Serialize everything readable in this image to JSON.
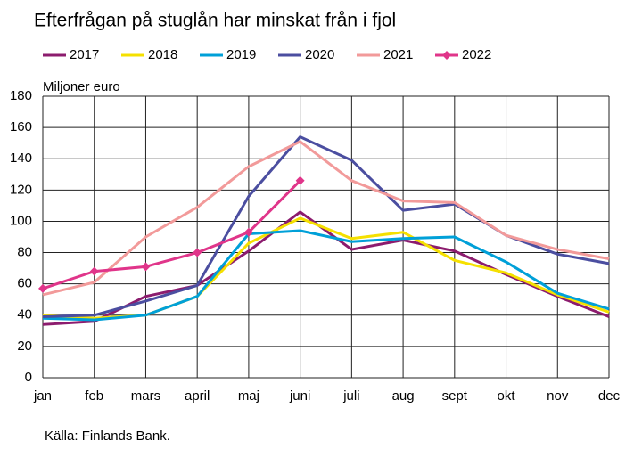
{
  "chart_data": {
    "type": "line",
    "title": "Efterfrågan på stuglån har minskat från i fjol",
    "y_axis_label": "Miljoner euro",
    "source": "Källa: Finlands Bank.",
    "categories": [
      "jan",
      "feb",
      "mars",
      "april",
      "maj",
      "juni",
      "juli",
      "aug",
      "sept",
      "okt",
      "nov",
      "dec"
    ],
    "series": [
      {
        "name": "2017",
        "color": "#8c1c6e",
        "values": [
          34,
          36,
          52,
          59,
          81,
          106,
          82,
          88,
          81,
          66,
          52,
          39
        ]
      },
      {
        "name": "2018",
        "color": "#f5e000",
        "values": [
          40,
          38,
          40,
          52,
          86,
          102,
          89,
          93,
          75,
          67,
          53,
          42
        ]
      },
      {
        "name": "2019",
        "color": "#00a0d8",
        "values": [
          38,
          37,
          40,
          52,
          92,
          94,
          87,
          89,
          90,
          74,
          54,
          44
        ]
      },
      {
        "name": "2020",
        "color": "#4b4ea0",
        "values": [
          39,
          40,
          49,
          59,
          116,
          154,
          139,
          107,
          111,
          91,
          79,
          73
        ]
      },
      {
        "name": "2021",
        "color": "#f29a9a",
        "values": [
          53,
          61,
          90,
          109,
          135,
          151,
          126,
          113,
          112,
          91,
          82,
          76
        ]
      },
      {
        "name": "2022",
        "color": "#e0358a",
        "marker": "diamond",
        "values": [
          57,
          68,
          71,
          80,
          93,
          126,
          null,
          null,
          null,
          null,
          null,
          null
        ]
      }
    ],
    "ylim": [
      0,
      180
    ],
    "yticks": [
      0,
      20,
      40,
      60,
      80,
      100,
      120,
      140,
      160,
      180
    ],
    "grid": true
  }
}
